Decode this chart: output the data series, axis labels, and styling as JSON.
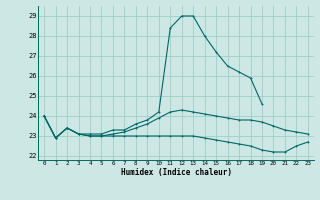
{
  "title": "",
  "xlabel": "Humidex (Indice chaleur)",
  "x": [
    0,
    1,
    2,
    3,
    4,
    5,
    6,
    7,
    8,
    9,
    10,
    11,
    12,
    13,
    14,
    15,
    16,
    17,
    18,
    19,
    20,
    21,
    22,
    23
  ],
  "line1": [
    24.0,
    22.9,
    23.4,
    23.1,
    23.1,
    23.1,
    23.3,
    23.3,
    23.6,
    23.8,
    24.2,
    28.4,
    29.0,
    29.0,
    28.0,
    27.2,
    26.5,
    26.2,
    25.9,
    24.6,
    null,
    null,
    null,
    null
  ],
  "line2": [
    24.0,
    22.9,
    23.4,
    23.1,
    23.0,
    23.0,
    23.1,
    23.2,
    23.4,
    23.6,
    23.9,
    24.2,
    24.3,
    24.2,
    24.1,
    24.0,
    23.9,
    23.8,
    23.8,
    23.7,
    23.5,
    23.3,
    23.2,
    23.1
  ],
  "line3": [
    24.0,
    22.9,
    23.4,
    23.1,
    23.0,
    23.0,
    23.0,
    23.0,
    23.0,
    23.0,
    23.0,
    23.0,
    23.0,
    23.0,
    22.9,
    22.8,
    22.7,
    22.6,
    22.5,
    22.3,
    22.2,
    22.2,
    22.5,
    22.7
  ],
  "ylim": [
    21.8,
    29.5
  ],
  "yticks": [
    22,
    23,
    24,
    25,
    26,
    27,
    28,
    29
  ],
  "bg_color": "#cde8e4",
  "line_color": "#006666",
  "grid_color": "#9dcfca"
}
